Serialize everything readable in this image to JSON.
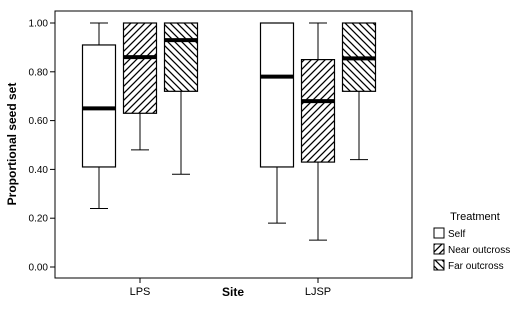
{
  "chart_data": {
    "type": "box",
    "xlabel": "Site",
    "ylabel": "Proportional seed set",
    "ylim": [
      0,
      1.04
    ],
    "yticks": [
      0,
      0.2,
      0.4,
      0.6,
      0.8,
      1.0
    ],
    "ytick_labels": [
      "0.00",
      "0.20",
      "0.40",
      "0.60",
      "0.80",
      "1.00"
    ],
    "categories": [
      "LPS",
      "LJSP"
    ],
    "legend": {
      "title": "Treatment",
      "placement": "right"
    },
    "series": [
      {
        "name": "Self",
        "pattern": "none",
        "boxes": [
          {
            "min": 0.24,
            "q1": 0.41,
            "median": 0.65,
            "q3": 0.91,
            "max": 1.0
          },
          {
            "min": 0.18,
            "q1": 0.41,
            "median": 0.78,
            "q3": 1.0,
            "max": 1.0
          }
        ]
      },
      {
        "name": "Near outcross",
        "pattern": "hatch-forward",
        "boxes": [
          {
            "min": 0.48,
            "q1": 0.63,
            "median": 0.86,
            "q3": 1.0,
            "max": 1.0
          },
          {
            "min": 0.11,
            "q1": 0.43,
            "median": 0.68,
            "q3": 0.85,
            "max": 1.0
          }
        ]
      },
      {
        "name": "Far outcross",
        "pattern": "hatch-back",
        "boxes": [
          {
            "min": 0.38,
            "q1": 0.72,
            "median": 0.93,
            "q3": 1.0,
            "max": 1.0
          },
          {
            "min": 0.44,
            "q1": 0.72,
            "median": 0.855,
            "q3": 1.0,
            "max": 1.0
          }
        ]
      }
    ]
  }
}
